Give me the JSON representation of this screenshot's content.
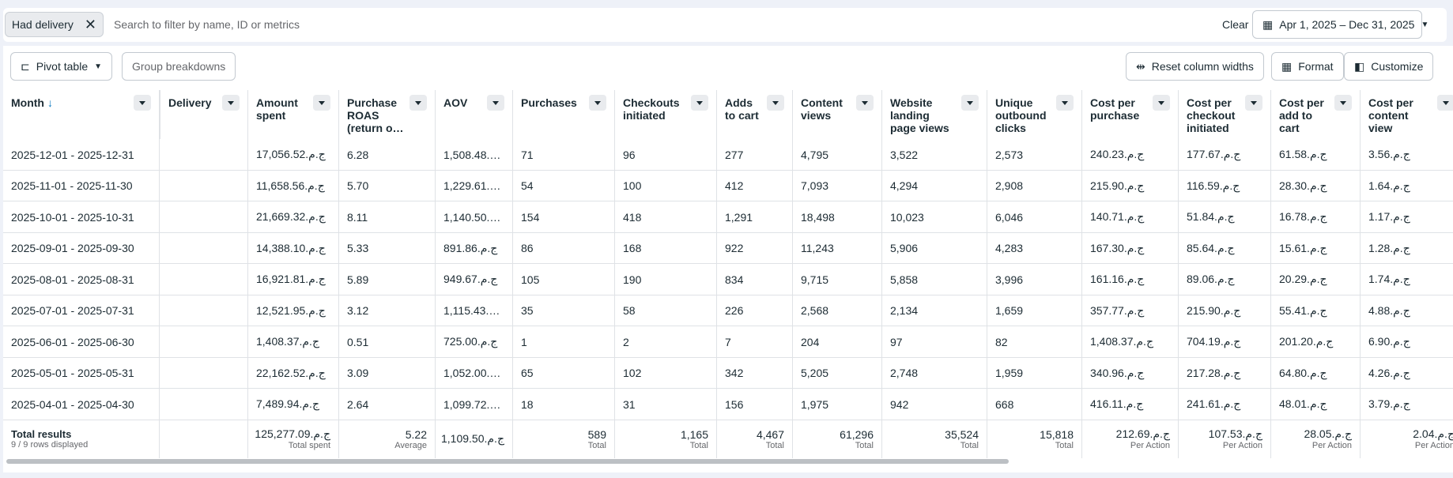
{
  "filter_bar": {
    "chip": "Had delivery",
    "search_placeholder": "Search to filter by name, ID or metrics",
    "clear": "Clear",
    "date_range": "Apr 1, 2025 – Dec 31, 2025"
  },
  "toolbar": {
    "pivot": "Pivot table",
    "group": "Group breakdowns",
    "reset": "Reset column widths",
    "format": "Format",
    "customize": "Customize"
  },
  "table": {
    "headers": [
      "Month",
      "Delivery",
      "Amount spent",
      "Purchase ROAS (return o…",
      "AOV",
      "Purchases",
      "Checkouts initiated",
      "Adds to cart",
      "Content views",
      "Website landing page views",
      "Unique outbound clicks",
      "Cost per purchase",
      "Cost per checkout initiated",
      "Cost per add to cart",
      "Cost per content view"
    ],
    "rows": [
      [
        "2025-12-01 - 2025-12-31",
        "17,056.52.ج.م",
        "6.28",
        "1,508.48.…",
        "71",
        "96",
        "277",
        "4,795",
        "3,522",
        "2,573",
        "240.23.ج.م",
        "177.67.ج.م",
        "61.58.ج.م",
        "3.56.ج.م"
      ],
      [
        "2025-11-01 - 2025-11-30",
        "11,658.56.ج.م",
        "5.70",
        "1,229.61.…",
        "54",
        "100",
        "412",
        "7,093",
        "4,294",
        "2,908",
        "215.90.ج.م",
        "116.59.ج.م",
        "28.30.ج.م",
        "1.64.ج.م"
      ],
      [
        "2025-10-01 - 2025-10-31",
        "21,669.32.ج.م",
        "8.11",
        "1,140.50.…",
        "154",
        "418",
        "1,291",
        "18,498",
        "10,023",
        "6,046",
        "140.71.ج.م",
        "51.84.ج.م",
        "16.78.ج.م",
        "1.17.ج.م"
      ],
      [
        "2025-09-01 - 2025-09-30",
        "14,388.10.ج.م",
        "5.33",
        "891.86.ج.م",
        "86",
        "168",
        "922",
        "11,243",
        "5,906",
        "4,283",
        "167.30.ج.م",
        "85.64.ج.م",
        "15.61.ج.م",
        "1.28.ج.م"
      ],
      [
        "2025-08-01 - 2025-08-31",
        "16,921.81.ج.م",
        "5.89",
        "949.67.ج.م",
        "105",
        "190",
        "834",
        "9,715",
        "5,858",
        "3,996",
        "161.16.ج.م",
        "89.06.ج.م",
        "20.29.ج.م",
        "1.74.ج.م"
      ],
      [
        "2025-07-01 - 2025-07-31",
        "12,521.95.ج.م",
        "3.12",
        "1,115.43.…",
        "35",
        "58",
        "226",
        "2,568",
        "2,134",
        "1,659",
        "357.77.ج.م",
        "215.90.ج.م",
        "55.41.ج.م",
        "4.88.ج.م"
      ],
      [
        "2025-06-01 - 2025-06-30",
        "1,408.37.ج.م",
        "0.51",
        "725.00.ج.م",
        "1",
        "2",
        "7",
        "204",
        "97",
        "82",
        "1,408.37.ج.م",
        "704.19.ج.م",
        "201.20.ج.م",
        "6.90.ج.م"
      ],
      [
        "2025-05-01 - 2025-05-31",
        "22,162.52.ج.م",
        "3.09",
        "1,052.00.…",
        "65",
        "102",
        "342",
        "5,205",
        "2,748",
        "1,959",
        "340.96.ج.م",
        "217.28.ج.م",
        "64.80.ج.م",
        "4.26.ج.م"
      ],
      [
        "2025-04-01 - 2025-04-30",
        "7,489.94.ج.م",
        "2.64",
        "1,099.72.…",
        "18",
        "31",
        "156",
        "1,975",
        "942",
        "668",
        "416.11.ج.م",
        "241.61.ج.م",
        "48.01.ج.م",
        "3.79.ج.م"
      ]
    ],
    "totals": {
      "title": "Total results",
      "subtitle": "9 / 9 rows displayed",
      "cells": [
        {
          "value": "125,277.09.ج.م",
          "label": "Total spent"
        },
        {
          "value": "5.22",
          "label": "Average"
        },
        {
          "value": "1,109.50.ج.م"
        },
        {
          "value": "589",
          "label": "Total"
        },
        {
          "value": "1,165",
          "label": "Total"
        },
        {
          "value": "4,467",
          "label": "Total"
        },
        {
          "value": "61,296",
          "label": "Total"
        },
        {
          "value": "35,524",
          "label": "Total"
        },
        {
          "value": "15,818",
          "label": "Total"
        },
        {
          "value": "212.69.ج.م",
          "label": "Per Action"
        },
        {
          "value": "107.53.ج.م",
          "label": "Per Action"
        },
        {
          "value": "28.05.ج.م",
          "label": "Per Action"
        },
        {
          "value": "2.04.ج.م",
          "label": "Per Action"
        }
      ]
    }
  }
}
